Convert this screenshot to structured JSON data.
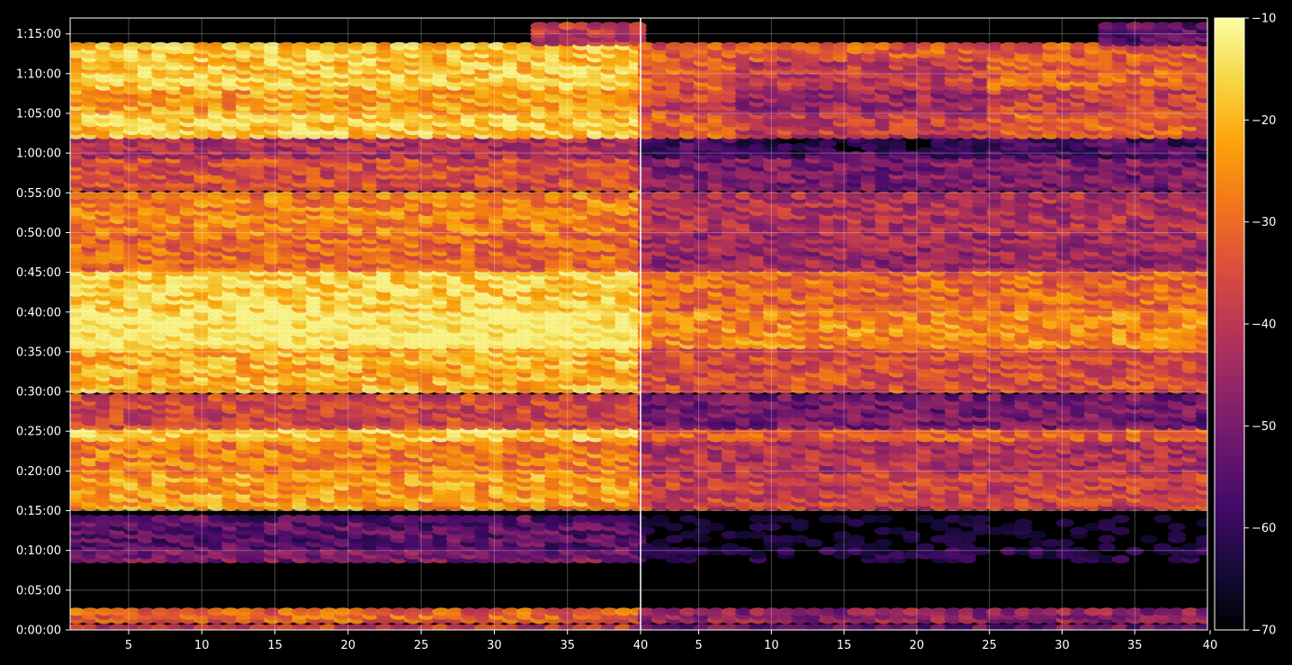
{
  "chart_data": {
    "type": "heatmap",
    "title": "",
    "colormap": "inferno",
    "background": "#000000",
    "grid": true,
    "panels": [
      {
        "name": "",
        "xlim": [
          1,
          40
        ],
        "xticks": [
          5,
          10,
          15,
          20,
          25,
          30,
          35
        ],
        "xtick_labels": [
          "5",
          "10",
          "15",
          "20",
          "25",
          "30",
          "35"
        ]
      },
      {
        "name": "",
        "xlim": [
          1,
          40
        ],
        "xticks": [
          5,
          10,
          15,
          20,
          25,
          30,
          35,
          40
        ],
        "xtick_labels": [
          "5",
          "10",
          "15",
          "20",
          "25",
          "30",
          "35",
          "40"
        ]
      }
    ],
    "shared_x_boundary_label": "40",
    "y_axis": {
      "label": "",
      "unit": "seconds",
      "ylim": [
        0,
        4620
      ],
      "ticks": [
        0,
        300,
        600,
        900,
        1200,
        1500,
        1800,
        2100,
        2400,
        2700,
        3000,
        3300,
        3600,
        3900,
        4200,
        4500
      ],
      "tick_labels": [
        "0:00:00",
        "0:05:00",
        "0:10:00",
        "0:15:00",
        "0:20:00",
        "0:25:00",
        "0:30:00",
        "0:35:00",
        "0:40:00",
        "0:45:00",
        "0:50:00",
        "0:55:00",
        "1:00:00",
        "1:05:00",
        "1:10:00",
        "1:15:00"
      ]
    },
    "colorbar": {
      "range": [
        -70,
        -10
      ],
      "ticks": [
        -10,
        -20,
        -30,
        -40,
        -50,
        -60,
        -70
      ],
      "tick_labels": [
        "−10",
        "−20",
        "−30",
        "−40",
        "−50",
        "−60",
        "−70"
      ]
    }
  }
}
